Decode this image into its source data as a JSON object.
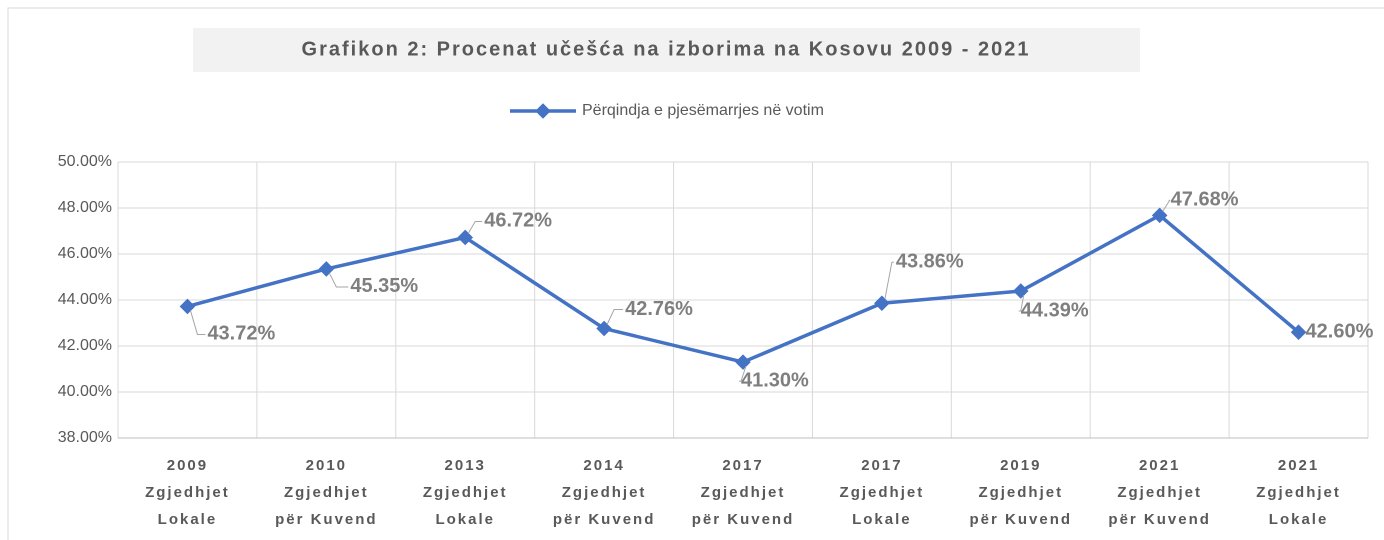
{
  "chart_data": {
    "type": "line",
    "title": "Grafikon 2: Procenat učešća na izborima na Kosovu 2009 - 2021",
    "categories": [
      [
        "2009",
        "Zgjedhjet",
        "Lokale"
      ],
      [
        "2010",
        "Zgjedhjet",
        "për Kuvend"
      ],
      [
        "2013",
        "Zgjedhjet",
        "Lokale"
      ],
      [
        "2014",
        "Zgjedhjet",
        "për Kuvend"
      ],
      [
        "2017",
        "Zgjedhjet",
        "për Kuvend"
      ],
      [
        "2017",
        "Zgjedhjet",
        "Lokale"
      ],
      [
        "2019",
        "Zgjedhjet",
        "për Kuvend"
      ],
      [
        "2021",
        "Zgjedhjet",
        "për Kuvend"
      ],
      [
        "2021",
        "Zgjedhjet",
        "Lokale"
      ]
    ],
    "series": [
      {
        "name": "Përqindja e pjesëmarrjes në votim",
        "color": "#4472c4",
        "values": [
          43.72,
          45.35,
          46.72,
          42.76,
          41.3,
          43.86,
          44.39,
          47.68,
          42.6
        ],
        "value_labels": [
          "43.72%",
          "45.35%",
          "46.72%",
          "42.76%",
          "41.30%",
          "43.86%",
          "44.39%",
          "47.68%",
          "42.60%"
        ]
      }
    ],
    "ylim": [
      38,
      50
    ],
    "yticks": [
      {
        "value": 38,
        "label": "38.00%"
      },
      {
        "value": 40,
        "label": "40.00%"
      },
      {
        "value": 42,
        "label": "42.00%"
      },
      {
        "value": 44,
        "label": "44.00%"
      },
      {
        "value": 46,
        "label": "46.00%"
      },
      {
        "value": 48,
        "label": "48.00%"
      },
      {
        "value": 50,
        "label": "50.00%"
      }
    ],
    "grid": true,
    "legend": "top"
  }
}
